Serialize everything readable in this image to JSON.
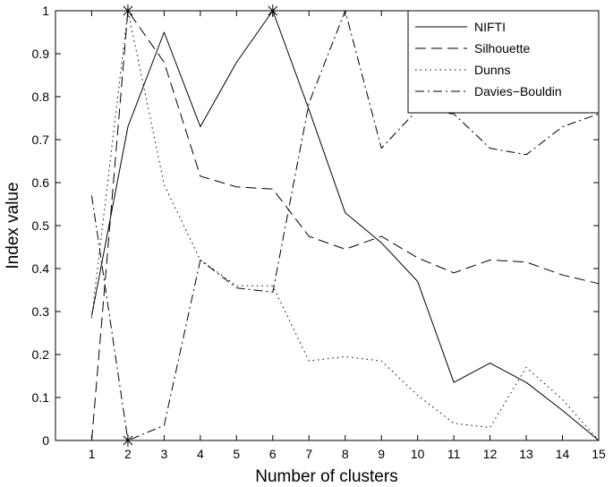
{
  "chart_data": {
    "type": "line",
    "title": "",
    "xlabel": "Number of clusters",
    "ylabel": "Index value",
    "x": [
      1,
      2,
      3,
      4,
      5,
      6,
      7,
      8,
      9,
      10,
      11,
      12,
      13,
      14,
      15
    ],
    "xlim": [
      0,
      15
    ],
    "ylim": [
      0,
      1
    ],
    "xticks": [
      "1",
      "2",
      "3",
      "4",
      "5",
      "6",
      "7",
      "8",
      "9",
      "10",
      "11",
      "12",
      "13",
      "14",
      "15"
    ],
    "yticks": [
      "0",
      "0.1",
      "0.2",
      "0.3",
      "0.4",
      "0.5",
      "0.6",
      "0.7",
      "0.8",
      "0.9",
      "1"
    ],
    "grid": false,
    "legend_position": "top-right",
    "series": [
      {
        "name": "NIFTI",
        "dash": "",
        "values": [
          0.29,
          0.73,
          0.95,
          0.73,
          0.88,
          1.0,
          0.77,
          0.53,
          0.46,
          0.37,
          0.135,
          0.18,
          0.135,
          0.07,
          0.0
        ]
      },
      {
        "name": "Silhouette",
        "dash": "12,6",
        "values": [
          0.0,
          1.0,
          0.88,
          0.615,
          0.59,
          0.585,
          0.475,
          0.445,
          0.475,
          0.425,
          0.39,
          0.42,
          0.415,
          0.385,
          0.365
        ]
      },
      {
        "name": "Dunns",
        "dash": "1.5,4",
        "values": [
          0.285,
          1.0,
          0.595,
          0.42,
          0.36,
          0.36,
          0.185,
          0.195,
          0.185,
          0.105,
          0.04,
          0.03,
          0.17,
          0.095,
          0.0
        ]
      },
      {
        "name": "Davies−Bouldin",
        "dash": "10,4,2,4",
        "values": [
          0.57,
          0.0,
          0.035,
          0.42,
          0.355,
          0.345,
          0.785,
          1.0,
          0.68,
          0.77,
          0.76,
          0.68,
          0.665,
          0.73,
          0.76
        ]
      }
    ],
    "markers": [
      {
        "x": 2,
        "y": 1.0
      },
      {
        "x": 2,
        "y": 0.0
      },
      {
        "x": 6,
        "y": 1.0
      }
    ]
  }
}
